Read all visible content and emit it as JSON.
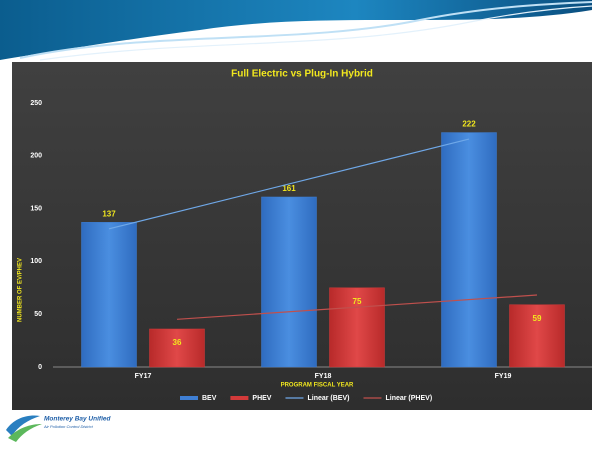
{
  "chart_data": {
    "type": "bar",
    "title": "Full Electric vs Plug-In Hybrid",
    "x_label": "PROGRAM FISCAL YEAR",
    "y_label": "NUMBER OF EV/PHEV",
    "categories": [
      "FY17",
      "FY18",
      "FY19"
    ],
    "series": [
      {
        "name": "BEV",
        "color": "#3f7fd4",
        "values": [
          137,
          161,
          222
        ],
        "trendline": {
          "name": "Linear (BEV)",
          "color": "#6fa8e8"
        }
      },
      {
        "name": "PHEV",
        "color": "#d33a3a",
        "values": [
          36,
          75,
          59
        ],
        "trendline": {
          "name": "Linear (PHEV)",
          "color": "#c0504d"
        }
      }
    ],
    "ylim": [
      0,
      250
    ],
    "yticks": [
      0,
      50,
      100,
      150,
      200,
      250
    ],
    "grid": false
  },
  "logo": {
    "name": "Monterey Bay Unified",
    "subtitle": "Air Pollution Control District"
  }
}
